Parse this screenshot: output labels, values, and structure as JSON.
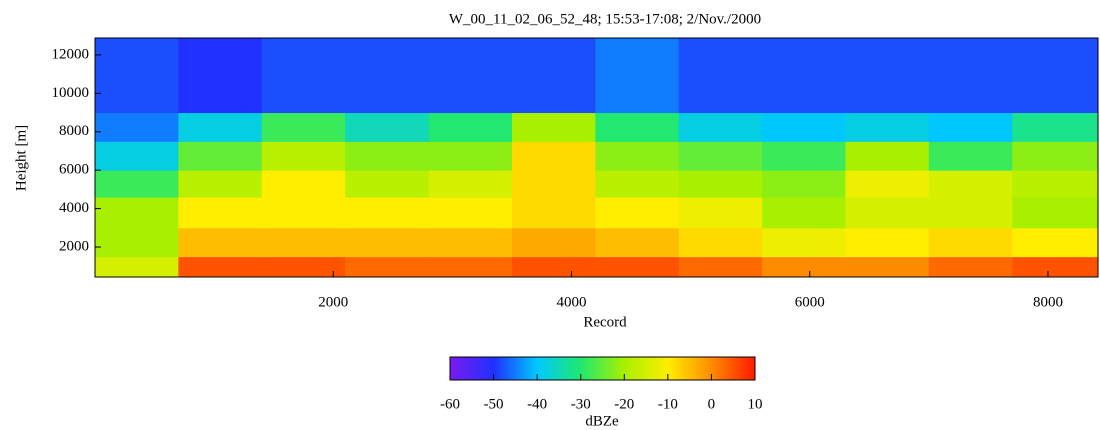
{
  "chart_data": {
    "type": "heatmap",
    "title": "W_00_11_02_06_52_48; 15:53-17:08; 2/Nov./2000",
    "x_label": "Record",
    "y_label": "Height [m]",
    "xlim": [
      0,
      8420
    ],
    "ylim": [
      440,
      12880
    ],
    "xticks": [
      2000,
      4000,
      6000,
      8000
    ],
    "yticks": [
      2000,
      4000,
      6000,
      8000,
      10000,
      12000
    ],
    "x_edges": [
      0,
      700,
      1400,
      2100,
      2800,
      3500,
      4200,
      4900,
      5600,
      6300,
      7000,
      7700,
      8420
    ],
    "y_edges": [
      440,
      1500,
      3000,
      4600,
      6000,
      7500,
      9000,
      12880
    ],
    "z": [
      [
        -15,
        5,
        5,
        3,
        3,
        5,
        5,
        3,
        0,
        0,
        3,
        5
      ],
      [
        -20,
        -5,
        -5,
        -5,
        -5,
        -3,
        -5,
        -8,
        -12,
        -10,
        -8,
        -10
      ],
      [
        -20,
        -10,
        -10,
        -10,
        -10,
        -8,
        -10,
        -12,
        -20,
        -15,
        -15,
        -20
      ],
      [
        -28,
        -18,
        -10,
        -18,
        -15,
        -8,
        -18,
        -20,
        -22,
        -12,
        -15,
        -18
      ],
      [
        -38,
        -25,
        -18,
        -22,
        -22,
        -8,
        -22,
        -25,
        -28,
        -20,
        -28,
        -22
      ],
      [
        -45,
        -38,
        -28,
        -35,
        -30,
        -20,
        -30,
        -38,
        -40,
        -38,
        -40,
        -32
      ],
      [
        -48,
        -50,
        -48,
        -48,
        -48,
        -48,
        -45,
        -48,
        -48,
        -48,
        -48,
        -48
      ]
    ],
    "colorbar": {
      "label": "dBZe",
      "lim": [
        -60,
        10
      ],
      "ticks": [
        -60,
        -50,
        -40,
        -30,
        -20,
        -10,
        0,
        10
      ],
      "colors": [
        "#7a1cf0",
        "#2030ff",
        "#00c8ff",
        "#20e870",
        "#a8f000",
        "#ffee00",
        "#ff8c00",
        "#ff1a00"
      ]
    }
  }
}
